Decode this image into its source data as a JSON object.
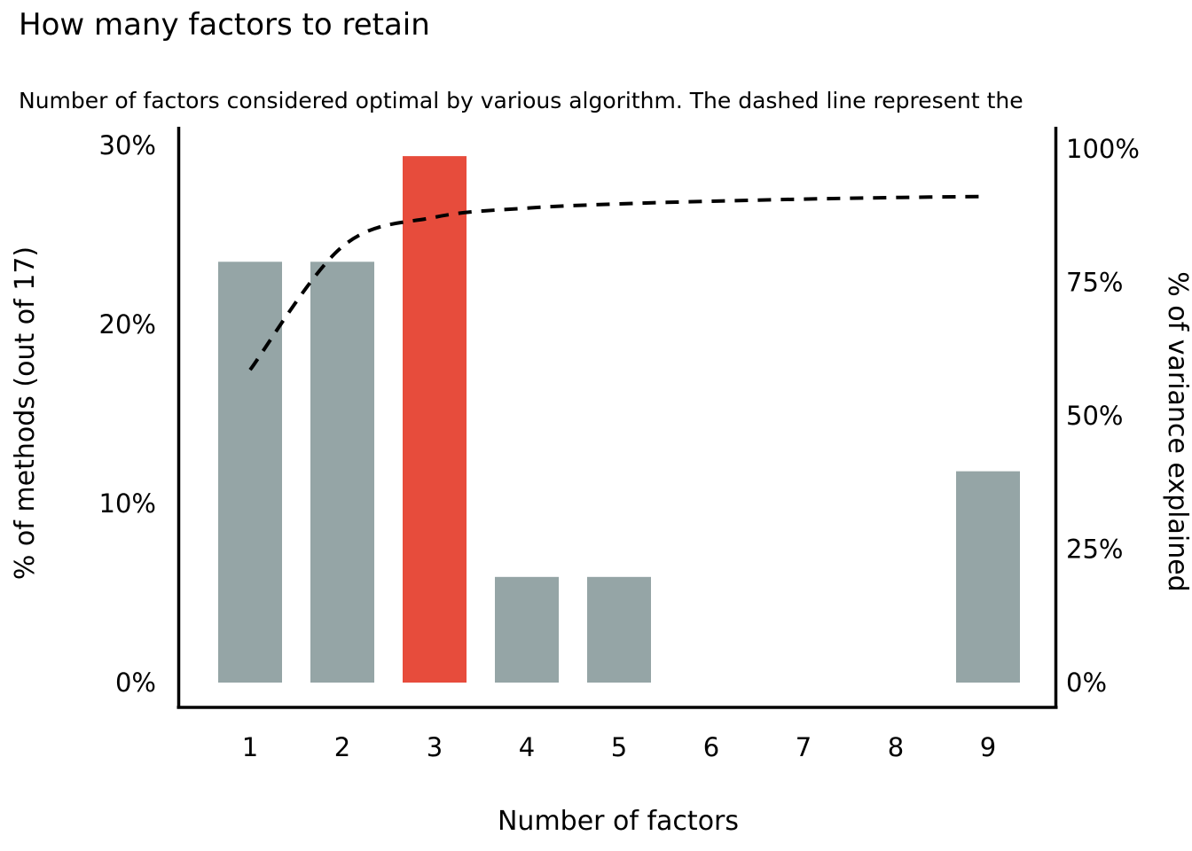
{
  "title": "How many factors to retain",
  "subtitle": "Number of factors considered optimal by various algorithm. The dashed line represent the",
  "chart_data": {
    "type": "bar",
    "title": "How many factors to retain",
    "subtitle": "Number of factors considered optimal by various algorithm. The dashed line represent the",
    "xlabel": "Number of factors",
    "categories": [
      "1",
      "2",
      "3",
      "4",
      "5",
      "6",
      "7",
      "8",
      "9"
    ],
    "series": [
      {
        "name": "% of methods",
        "type": "bar",
        "axis": "left",
        "values": [
          23.5,
          23.5,
          29.4,
          5.9,
          5.9,
          0,
          0,
          0,
          11.8
        ],
        "counts_of_17": [
          4,
          4,
          5,
          1,
          1,
          0,
          0,
          0,
          2
        ],
        "highlight_category": "3"
      },
      {
        "name": "% of variance explained",
        "type": "line",
        "axis": "right",
        "style": "dashed",
        "values": [
          58.6,
          81.7,
          87.2,
          88.9,
          89.7,
          90.2,
          90.6,
          90.9,
          91.1
        ]
      }
    ],
    "left_axis": {
      "label": "% of methods (out of 17)",
      "ticks": [
        "0%",
        "10%",
        "20%",
        "30%"
      ],
      "tick_values": [
        0,
        10,
        20,
        30
      ],
      "range": [
        0,
        30
      ]
    },
    "right_axis": {
      "label": "% of variance explained",
      "ticks": [
        "0%",
        "25%",
        "50%",
        "75%",
        "100%"
      ],
      "tick_values": [
        0,
        25,
        50,
        75,
        100
      ],
      "range": [
        0,
        100
      ]
    },
    "legend": "none",
    "grid": false,
    "colors": {
      "bar": "#95a5a6",
      "bar_highlight": "#e74c3c",
      "line": "#000000",
      "axis": "#000000",
      "background": "#ffffff"
    }
  }
}
